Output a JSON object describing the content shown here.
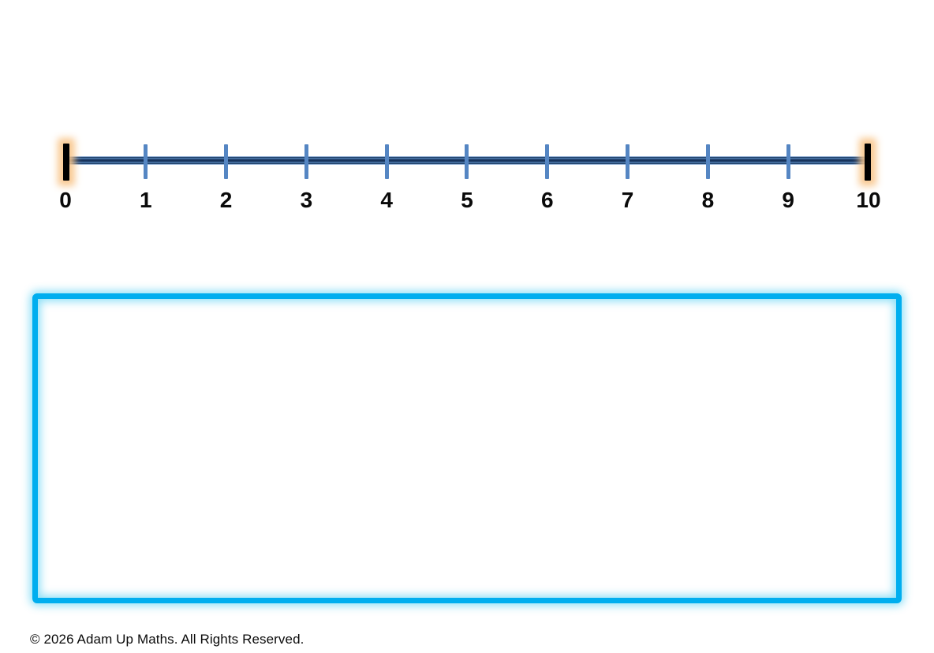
{
  "page": {
    "background_color": "#ffffff",
    "footer": {
      "copyright": "© 2026 Adam Up Maths. All Rights Reserved."
    }
  },
  "number_line": {
    "min": 0,
    "max": 10,
    "step": 1,
    "labels": [
      "0",
      "1",
      "2",
      "3",
      "4",
      "5",
      "6",
      "7",
      "8",
      "9",
      "10"
    ],
    "endpoints": {
      "left_value": "0",
      "right_value": "10"
    },
    "colors": {
      "tick": "#5586C3",
      "line_dark": "#17335C",
      "line_mid": "#4E79AE",
      "line_edge": "#24466F",
      "line_highlight": "#9BB6D9",
      "endpoint_bar": "#000000",
      "endpoint_glow": "rgba(248, 196, 136, 0.9)",
      "label_text": "#0A0A0A"
    }
  },
  "workspace_box": {
    "border_color": "#00AEEF",
    "glow_color": "rgba(0, 183, 235, 0.45)",
    "fill_color": "#FFFFFF"
  }
}
